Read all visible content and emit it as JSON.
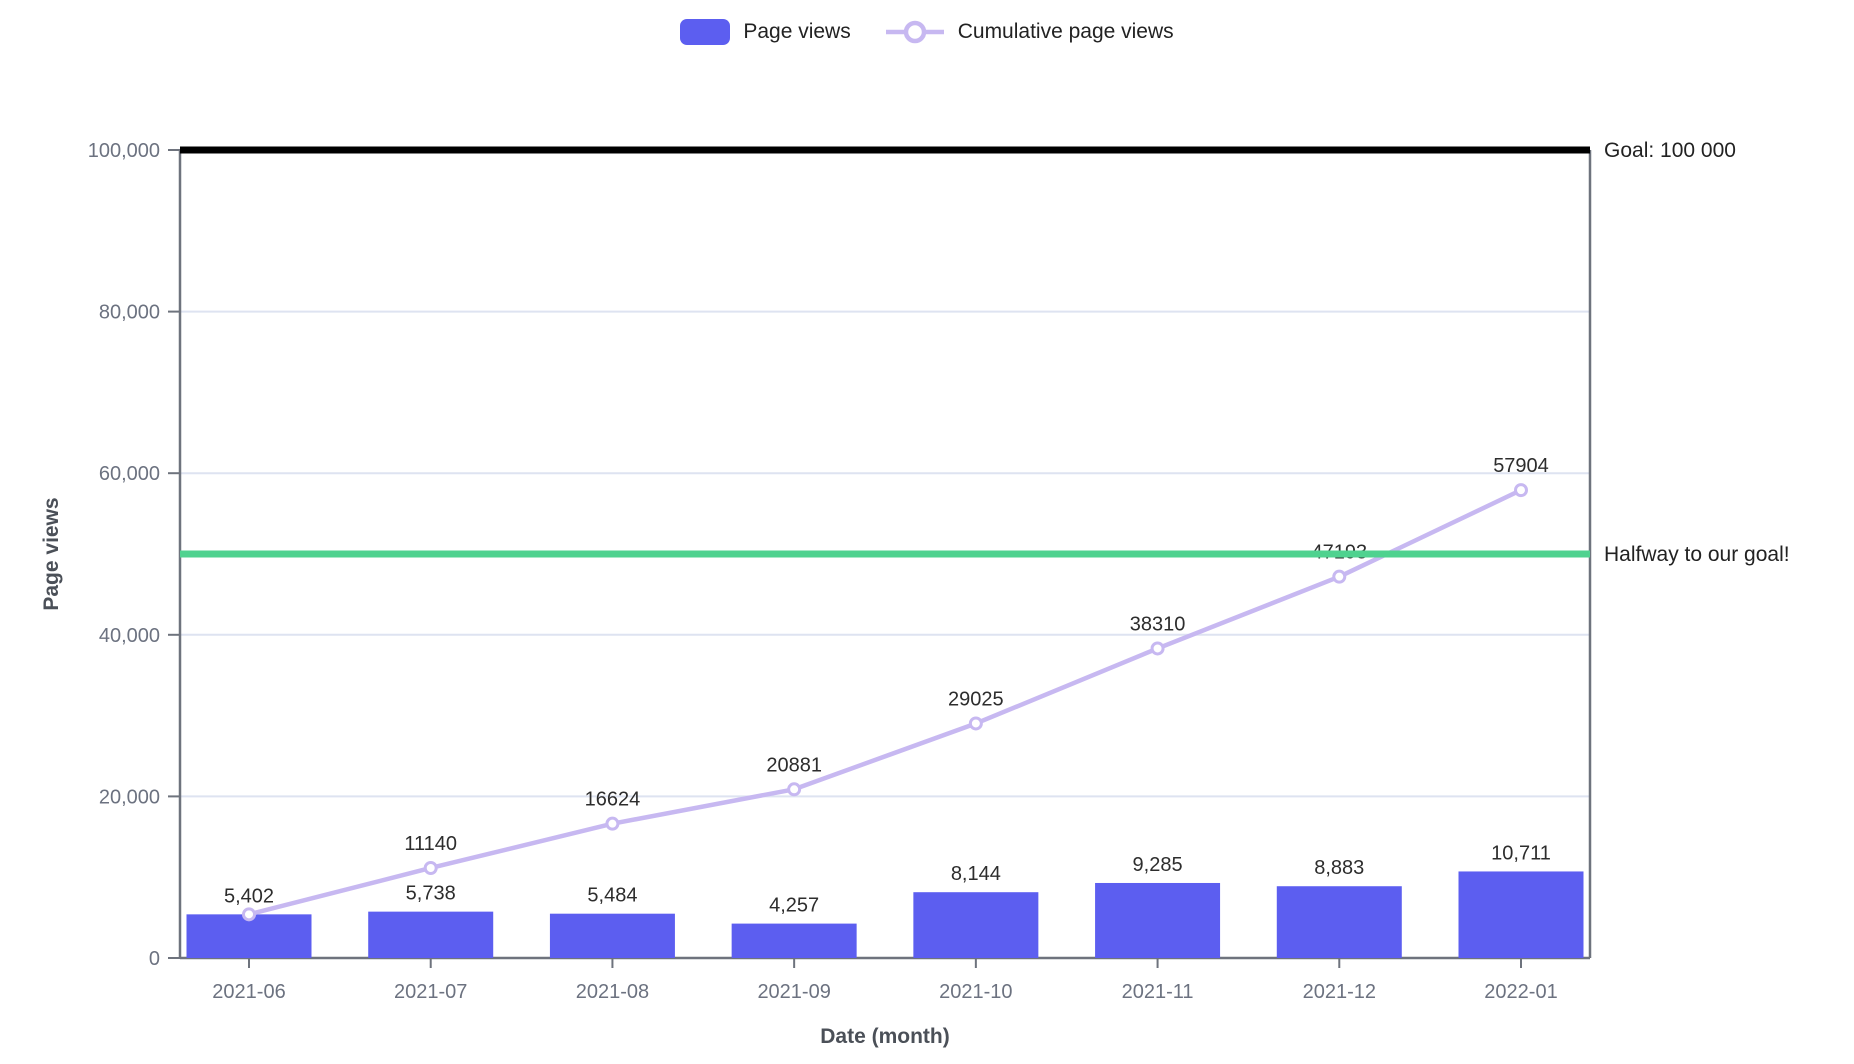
{
  "legend": {
    "items": [
      {
        "label": "Page views",
        "swatch": "bar"
      },
      {
        "label": "Cumulative page views",
        "swatch": "line-marker"
      }
    ]
  },
  "chart_data": {
    "type": "bar",
    "title": "",
    "xlabel": "Date (month)",
    "ylabel": "Page views",
    "categories": [
      "2021-06",
      "2021-07",
      "2021-08",
      "2021-09",
      "2021-10",
      "2021-11",
      "2021-12",
      "2022-01"
    ],
    "series": [
      {
        "name": "Page views",
        "type": "bar",
        "color": "#5c5ef0",
        "values": [
          5402,
          5738,
          5484,
          4257,
          8144,
          9285,
          8883,
          10711
        ],
        "labels": [
          "5,402",
          "5,738",
          "5,484",
          "4,257",
          "8,144",
          "9,285",
          "8,883",
          "10,711"
        ]
      },
      {
        "name": "Cumulative page views",
        "type": "line",
        "color": "#c7b8f1",
        "marker": "open-circle",
        "values": [
          5402,
          11140,
          16624,
          20881,
          29025,
          38310,
          47193,
          57904
        ],
        "labels": [
          null,
          "11140",
          "16624",
          "20881",
          "29025",
          "38310",
          "47193",
          "57904"
        ]
      }
    ],
    "ylim": [
      0,
      100000
    ],
    "y_ticks": [
      0,
      20000,
      40000,
      60000,
      80000,
      100000
    ],
    "y_tick_labels": [
      "0",
      "20,000",
      "40,000",
      "60,000",
      "80,000",
      "100,000"
    ],
    "grid": true,
    "legend_position": "top-center",
    "annotations": [
      {
        "type": "hline",
        "y": 100000,
        "color": "#000000",
        "width": 7,
        "label": "Goal: 100 000"
      },
      {
        "type": "hline",
        "y": 50000,
        "color": "#4fd28f",
        "width": 7,
        "label": "Halfway to our goal!"
      }
    ]
  },
  "colors": {
    "background": "#ffffff",
    "bar": "#5c5ef0",
    "line": "#c7b8f1",
    "grid": "#dee3f1",
    "axis": "#6e737d",
    "tick_text": "#6c7280",
    "label_text": "#2d2d2d",
    "title_text": "#4b5058",
    "annotation_text": "#222222"
  }
}
